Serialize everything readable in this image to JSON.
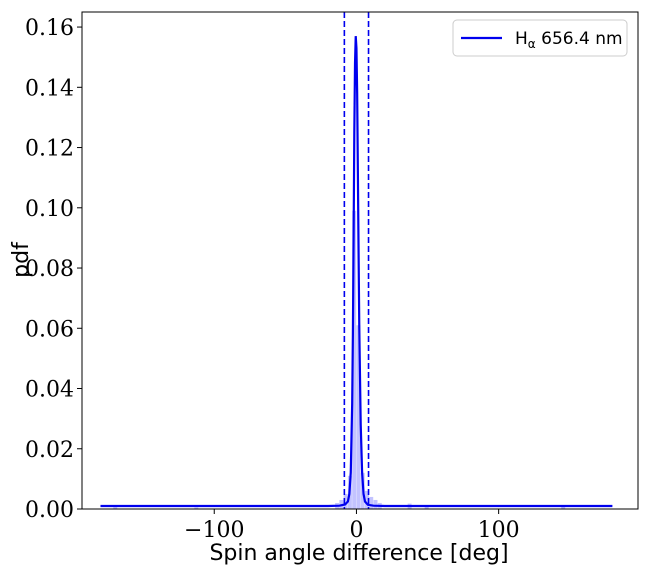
{
  "chart_data": {
    "type": "line",
    "xlabel": "Spin angle difference [deg]",
    "ylabel": "pdf",
    "xlim": [
      -193,
      198
    ],
    "ylim": [
      0,
      0.165
    ],
    "x_ticks": [
      -100,
      0,
      100
    ],
    "x_tick_labels": [
      "−100",
      "0",
      "100"
    ],
    "y_ticks": [
      0,
      0.02,
      0.04,
      0.06,
      0.08,
      0.1,
      0.12,
      0.14,
      0.16
    ],
    "y_tick_labels": [
      "0.00",
      "0.02",
      "0.04",
      "0.06",
      "0.08",
      "0.10",
      "0.12",
      "0.14",
      "0.16"
    ],
    "grid": false,
    "legend_position": "top-right",
    "series": [
      {
        "name": "H",
        "name_subscript": "α",
        "name_suffix": " 656.4 nm",
        "color": "#0000ee",
        "x": [
          -180,
          -20,
          -12,
          -8,
          -6,
          -5,
          -4,
          -3,
          -2.5,
          -2,
          -1.5,
          -1,
          -0.5,
          0,
          0.5,
          1,
          1.5,
          2,
          3,
          4,
          5,
          6,
          8,
          12,
          20,
          180
        ],
        "y": [
          0.001,
          0.001,
          0.0011,
          0.0015,
          0.0025,
          0.005,
          0.012,
          0.035,
          0.058,
          0.09,
          0.125,
          0.148,
          0.157,
          0.153,
          0.138,
          0.112,
          0.085,
          0.06,
          0.028,
          0.012,
          0.005,
          0.0025,
          0.0014,
          0.0011,
          0.001,
          0.001
        ]
      }
    ],
    "histogram": {
      "color": "#aaaaff",
      "bin_width": 3,
      "bins": [
        {
          "x0": -15,
          "h": 0.002
        },
        {
          "x0": -12,
          "h": 0.003
        },
        {
          "x0": -9,
          "h": 0.005
        },
        {
          "x0": -6,
          "h": 0.011
        },
        {
          "x0": -3,
          "h": 0.099
        },
        {
          "x0": 0,
          "h": 0.061
        },
        {
          "x0": 3,
          "h": 0.012
        },
        {
          "x0": 6,
          "h": 0.006
        },
        {
          "x0": 9,
          "h": 0.004
        },
        {
          "x0": 12,
          "h": 0.003
        },
        {
          "x0": 15,
          "h": 0.002
        },
        {
          "x0": 36,
          "h": 0.0018
        },
        {
          "x0": 48,
          "h": 0.001
        },
        {
          "x0": -171,
          "h": 0.0006
        },
        {
          "x0": -114,
          "h": 0.0005
        },
        {
          "x0": 144,
          "h": 0.0007
        }
      ]
    },
    "vlines": [
      {
        "x": -8.5,
        "style": "dashed",
        "color": "#0000ee"
      },
      {
        "x": 8.5,
        "style": "dashed",
        "color": "#0000ee"
      }
    ]
  }
}
